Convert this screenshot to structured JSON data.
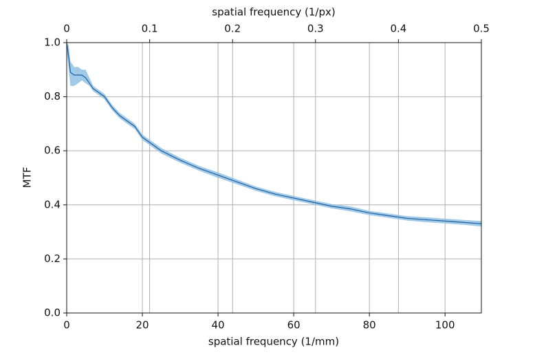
{
  "chart_data": {
    "type": "line",
    "xlabel": "spatial frequency (1/mm)",
    "x2label": "spatial frequency (1/px)",
    "ylabel": "MTF",
    "x": [
      0,
      0.5,
      1,
      2,
      3,
      4,
      5,
      6,
      7,
      8,
      10,
      12,
      14,
      16,
      18,
      20,
      25,
      30,
      35,
      40,
      45,
      50,
      55,
      60,
      65,
      70,
      75,
      80,
      85,
      90,
      95,
      100,
      105,
      109.6
    ],
    "values": [
      1.0,
      0.95,
      0.89,
      0.88,
      0.88,
      0.88,
      0.87,
      0.85,
      0.83,
      0.82,
      0.8,
      0.76,
      0.73,
      0.71,
      0.69,
      0.65,
      0.6,
      0.565,
      0.535,
      0.51,
      0.485,
      0.46,
      0.44,
      0.425,
      0.41,
      0.395,
      0.385,
      0.37,
      0.36,
      0.35,
      0.345,
      0.34,
      0.335,
      0.33
    ],
    "band_lower": [
      0.97,
      0.9,
      0.84,
      0.84,
      0.85,
      0.86,
      0.85,
      0.84,
      0.82,
      0.81,
      0.79,
      0.75,
      0.72,
      0.7,
      0.68,
      0.64,
      0.59,
      0.556,
      0.526,
      0.5,
      0.476,
      0.452,
      0.432,
      0.417,
      0.402,
      0.387,
      0.376,
      0.362,
      0.352,
      0.342,
      0.336,
      0.331,
      0.326,
      0.32
    ],
    "band_upper": [
      1.0,
      0.99,
      0.93,
      0.91,
      0.91,
      0.9,
      0.9,
      0.87,
      0.84,
      0.83,
      0.81,
      0.77,
      0.74,
      0.72,
      0.7,
      0.66,
      0.61,
      0.574,
      0.544,
      0.52,
      0.494,
      0.468,
      0.448,
      0.433,
      0.418,
      0.403,
      0.394,
      0.378,
      0.368,
      0.358,
      0.354,
      0.349,
      0.344,
      0.34
    ],
    "color": "#1f5f9e",
    "band_color": "#8fc1e3",
    "xlim": [
      0,
      109.6
    ],
    "xticks": [
      0,
      20,
      40,
      60,
      80,
      100
    ],
    "x2lim": [
      0,
      0.5
    ],
    "x2ticks": [
      0,
      0.1,
      0.2,
      0.3,
      0.4,
      0.5
    ],
    "ylim": [
      0,
      1
    ],
    "yticks": [
      {
        "value": 0,
        "label": "0.0"
      },
      0.2,
      0.4,
      0.6,
      0.8,
      {
        "value": 1,
        "label": "1.0"
      }
    ],
    "grid": true
  }
}
